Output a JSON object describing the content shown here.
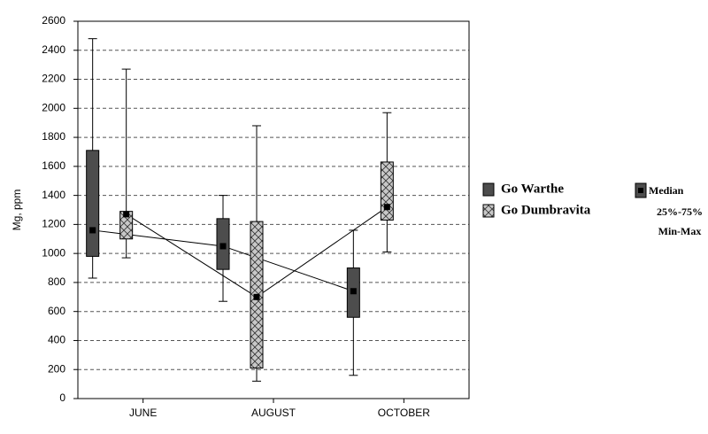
{
  "chart_data": {
    "type": "box",
    "y_label": "Mg, ppm",
    "categories": [
      "JUNE",
      "AUGUST",
      "OCTOBER"
    ],
    "ylim": [
      0,
      2600
    ],
    "yticks": [
      0,
      200,
      400,
      600,
      800,
      1000,
      1200,
      1400,
      1600,
      1800,
      2000,
      2200,
      2400,
      2600
    ],
    "grid": true,
    "series": [
      {
        "name": "Go Warthe",
        "color": "#4d4d4d",
        "pattern": "solid",
        "min": [
          830,
          670,
          160
        ],
        "q1": [
          980,
          890,
          560
        ],
        "median": [
          1160,
          1050,
          740
        ],
        "q3": [
          1710,
          1240,
          900
        ],
        "max": [
          2480,
          1400,
          1160
        ]
      },
      {
        "name": "Go Dumbravita",
        "color": "#c8c8c8",
        "pattern": "crosshatch",
        "min": [
          970,
          120,
          1010
        ],
        "q1": [
          1100,
          210,
          1230
        ],
        "median": [
          1270,
          700,
          1320
        ],
        "q3": [
          1290,
          1220,
          1630
        ],
        "max": [
          2270,
          1880,
          1970
        ]
      }
    ],
    "legend_stats": [
      "Median",
      "25%-75%",
      "Min-Max"
    ]
  }
}
